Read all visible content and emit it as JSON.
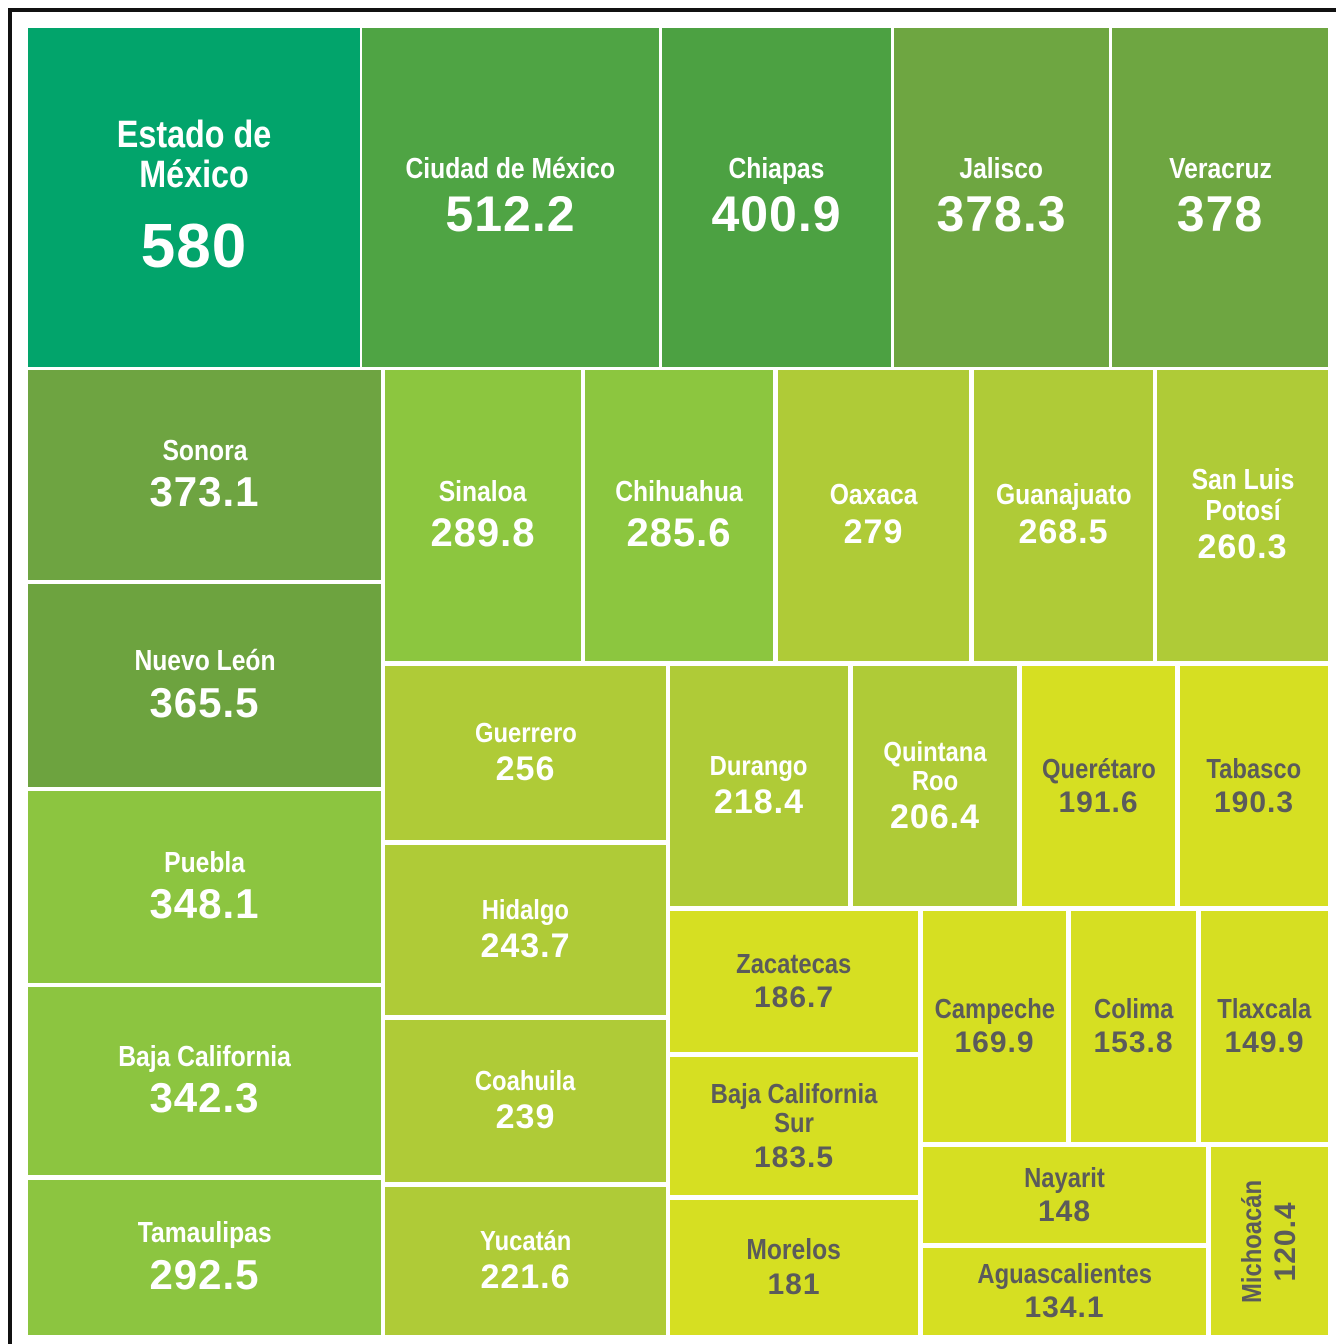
{
  "chart_data": {
    "type": "treemap",
    "categories": [
      "Estado de México",
      "Ciudad de México",
      "Chiapas",
      "Jalisco",
      "Veracruz",
      "Sonora",
      "Nuevo León",
      "Puebla",
      "Baja California",
      "Tamaulipas",
      "Sinaloa",
      "Chihuahua",
      "Oaxaca",
      "Guanajuato",
      "San Luis Potosí",
      "Guerrero",
      "Hidalgo",
      "Coahuila",
      "Yucatán",
      "Durango",
      "Quintana Roo",
      "Querétaro",
      "Tabasco",
      "Zacatecas",
      "Baja California Sur",
      "Morelos",
      "Campeche",
      "Colima",
      "Tlaxcala",
      "Nayarit",
      "Aguascalientes",
      "Michoacán"
    ],
    "values": [
      580,
      512.2,
      400.9,
      378.3,
      378,
      373.1,
      365.5,
      348.1,
      342.3,
      292.5,
      289.8,
      285.6,
      279,
      268.5,
      260.3,
      256,
      243.7,
      239,
      221.6,
      218.4,
      206.4,
      191.6,
      190.3,
      186.7,
      183.5,
      181,
      169.9,
      153.8,
      149.9,
      148,
      134.1,
      120.4
    ],
    "colors": [
      "#02a46b",
      "#4fa444",
      "#4ca142",
      "#6ea641",
      "#6ea641",
      "#6ea441",
      "#6da33f",
      "#8cc540",
      "#8cc540",
      "#8cc540",
      "#8cc63f",
      "#8cc63f",
      "#afcb37",
      "#afcb37",
      "#afcb37",
      "#afcb37",
      "#afcb37",
      "#afcb37",
      "#afcb37",
      "#afcb37",
      "#afcb37",
      "#d6df22",
      "#d6df22",
      "#d6df22",
      "#d6df22",
      "#d6df22",
      "#d6df22",
      "#d6df22",
      "#d6df22",
      "#d6df22",
      "#d6df22",
      "#d6df22"
    ]
  }
}
